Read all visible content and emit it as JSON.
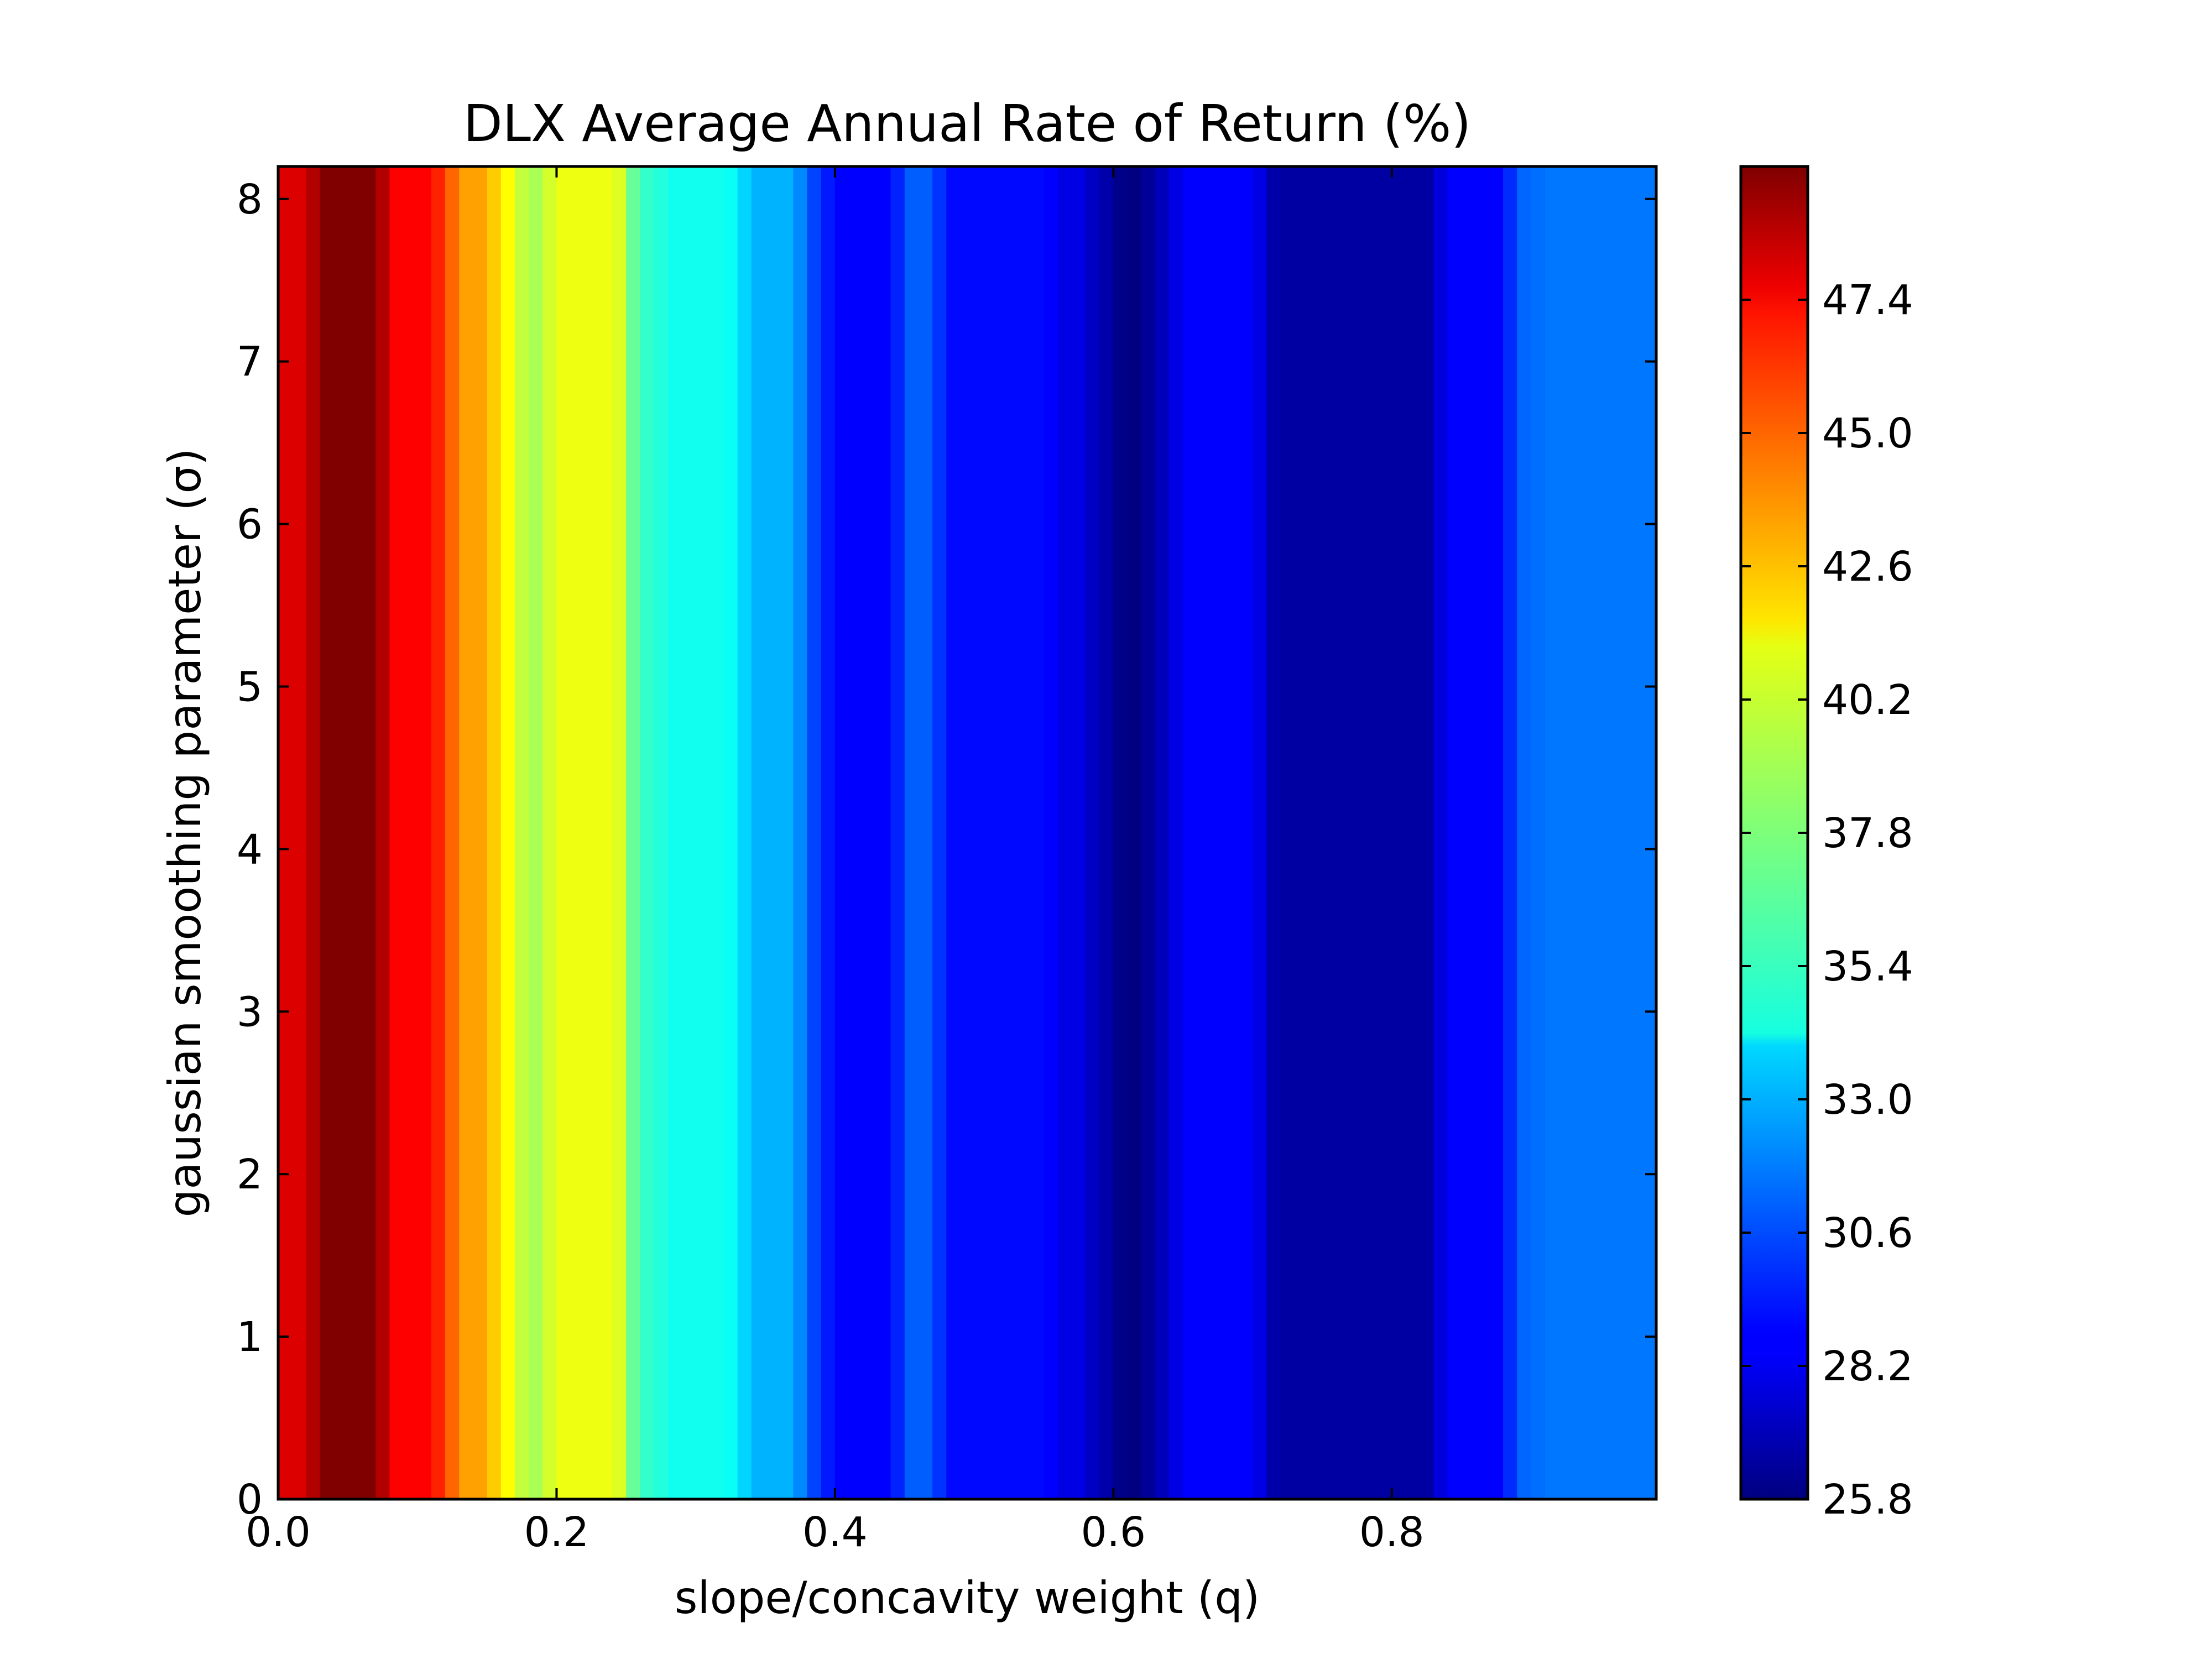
{
  "chart_data": {
    "type": "heatmap",
    "title": "DLX Average Annual Rate of Return (%)",
    "xlabel": "slope/concavity weight (q)",
    "ylabel": "gaussian smoothing parameter (σ)",
    "xlim": [
      0.0,
      0.99
    ],
    "ylim": [
      0,
      8.2
    ],
    "x_ticks": [
      0.0,
      0.2,
      0.4,
      0.6,
      0.8
    ],
    "x_tick_labels": [
      "0.0",
      "0.2",
      "0.4",
      "0.6",
      "0.8"
    ],
    "y_ticks": [
      0,
      1,
      2,
      3,
      4,
      5,
      6,
      7,
      8
    ],
    "y_tick_labels": [
      "0",
      "1",
      "2",
      "3",
      "4",
      "5",
      "6",
      "7",
      "8"
    ],
    "colormap": "jet",
    "color_range": [
      25.8,
      49.8
    ],
    "colorbar_ticks": [
      25.8,
      28.2,
      30.6,
      33.0,
      35.4,
      37.8,
      40.2,
      42.6,
      45.0,
      47.4
    ],
    "colorbar_tick_labels": [
      "25.8",
      "28.2",
      "30.6",
      "33.0",
      "35.4",
      "37.8",
      "40.2",
      "42.6",
      "45.0",
      "47.4"
    ],
    "q": [
      0.0,
      0.01,
      0.02,
      0.03,
      0.04,
      0.05,
      0.06,
      0.07,
      0.08,
      0.09,
      0.1,
      0.11,
      0.12,
      0.13,
      0.14,
      0.15,
      0.16,
      0.17,
      0.18,
      0.19,
      0.2,
      0.21,
      0.22,
      0.23,
      0.24,
      0.25,
      0.26,
      0.27,
      0.28,
      0.29,
      0.3,
      0.31,
      0.32,
      0.33,
      0.34,
      0.35,
      0.36,
      0.37,
      0.38,
      0.39,
      0.4,
      0.41,
      0.42,
      0.43,
      0.44,
      0.45,
      0.46,
      0.47,
      0.48,
      0.49,
      0.5,
      0.51,
      0.52,
      0.53,
      0.54,
      0.55,
      0.56,
      0.57,
      0.58,
      0.59,
      0.6,
      0.61,
      0.62,
      0.63,
      0.64,
      0.65,
      0.66,
      0.67,
      0.68,
      0.69,
      0.7,
      0.71,
      0.72,
      0.73,
      0.74,
      0.75,
      0.76,
      0.77,
      0.78,
      0.79,
      0.8,
      0.81,
      0.82,
      0.83,
      0.84,
      0.85,
      0.86,
      0.87,
      0.88,
      0.89,
      0.9,
      0.91,
      0.92,
      0.93,
      0.94,
      0.95,
      0.96,
      0.97,
      0.98
    ],
    "values": [
      47.6,
      47.6,
      48.6,
      49.8,
      49.8,
      49.8,
      49.8,
      48.6,
      46.8,
      46.8,
      46.8,
      46.0,
      44.4,
      43.0,
      43.0,
      42.0,
      40.8,
      39.4,
      38.8,
      39.8,
      40.4,
      40.4,
      40.4,
      40.4,
      40.0,
      37.2,
      36.0,
      35.6,
      35.2,
      35.2,
      35.2,
      35.2,
      35.0,
      33.8,
      33.0,
      33.0,
      33.0,
      32.0,
      30.4,
      29.4,
      28.8,
      28.8,
      28.8,
      28.8,
      29.6,
      31.0,
      31.0,
      30.0,
      29.0,
      29.0,
      29.0,
      29.0,
      29.0,
      29.0,
      29.0,
      28.8,
      28.2,
      28.2,
      27.4,
      26.8,
      26.0,
      25.8,
      26.4,
      27.2,
      28.2,
      28.8,
      28.8,
      28.8,
      28.8,
      28.8,
      28.2,
      26.8,
      26.6,
      26.6,
      26.6,
      26.6,
      26.6,
      26.6,
      26.6,
      26.6,
      26.6,
      26.6,
      26.6,
      28.0,
      28.8,
      28.8,
      28.8,
      28.8,
      29.8,
      31.2,
      31.4,
      31.6,
      31.6,
      31.6,
      31.6,
      31.6,
      31.6,
      31.6,
      31.6
    ]
  }
}
